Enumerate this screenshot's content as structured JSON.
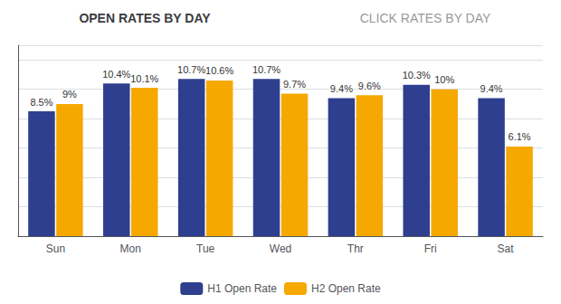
{
  "chart_data": {
    "type": "bar",
    "title": "OPEN RATES BY DAY",
    "subtitle": "CLICK RATES BY DAY",
    "categories": [
      "Sun",
      "Mon",
      "Tue",
      "Wed",
      "Thr",
      "Fri",
      "Sat"
    ],
    "series": [
      {
        "name": "H1 Open Rate",
        "color": "#2E3F8F",
        "values": [
          8.5,
          10.4,
          10.7,
          10.7,
          9.4,
          10.3,
          9.4
        ],
        "value_labels": [
          "8.5%",
          "10.4%",
          "10.7%",
          "10.7%",
          "9.4%",
          "10.3%",
          "9.4%"
        ]
      },
      {
        "name": "H2 Open Rate",
        "color": "#F5A800",
        "values": [
          9.0,
          10.1,
          10.6,
          9.7,
          9.6,
          10.0,
          6.1
        ],
        "value_labels": [
          "9%",
          "10.1%",
          "10.6%",
          "9.7%",
          "9.6%",
          "10%",
          "6.1%"
        ]
      }
    ],
    "ylim": [
      0,
      13
    ],
    "yticks": [
      0,
      2,
      4,
      6,
      8,
      10,
      12
    ],
    "grid": true,
    "legend": "bottom",
    "data_labels": true,
    "tick_labels": "x"
  }
}
